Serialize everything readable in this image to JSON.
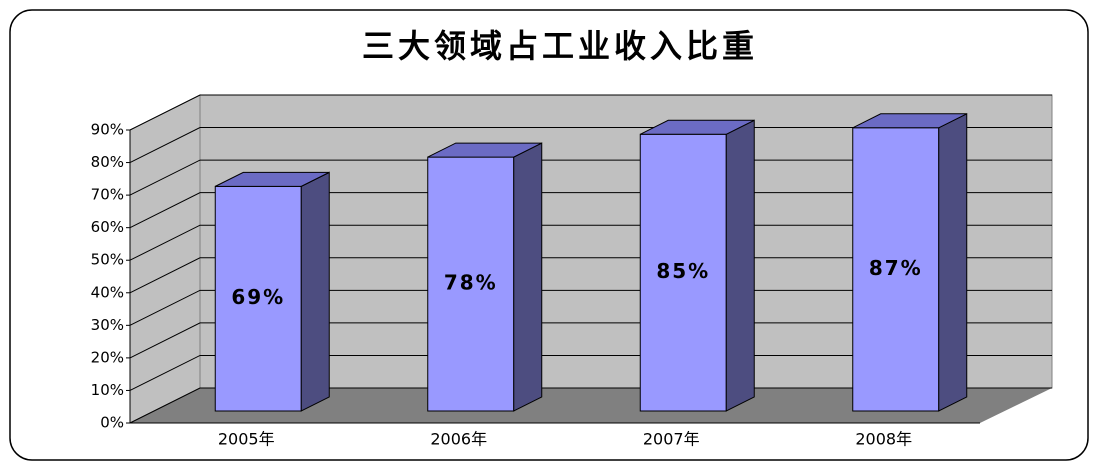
{
  "chart_data": {
    "type": "bar3d",
    "title": "三大领域占工业收入比重",
    "categories": [
      "2005年",
      "2006年",
      "2007年",
      "2008年"
    ],
    "values": [
      69,
      78,
      85,
      87
    ],
    "value_labels": [
      "69%",
      "78%",
      "85%",
      "87%"
    ],
    "color": "#9999ff",
    "ylim": [
      0,
      90
    ],
    "yticks": [
      {
        "value": 0,
        "label": "0%"
      },
      {
        "value": 10,
        "label": "10%"
      },
      {
        "value": 20,
        "label": "20%"
      },
      {
        "value": 30,
        "label": "30%"
      },
      {
        "value": 40,
        "label": "40%"
      },
      {
        "value": 50,
        "label": "50%"
      },
      {
        "value": 60,
        "label": "60%"
      },
      {
        "value": 70,
        "label": "70%"
      },
      {
        "value": 80,
        "label": "80%"
      },
      {
        "value": 90,
        "label": "90%"
      }
    ],
    "grid": true
  }
}
